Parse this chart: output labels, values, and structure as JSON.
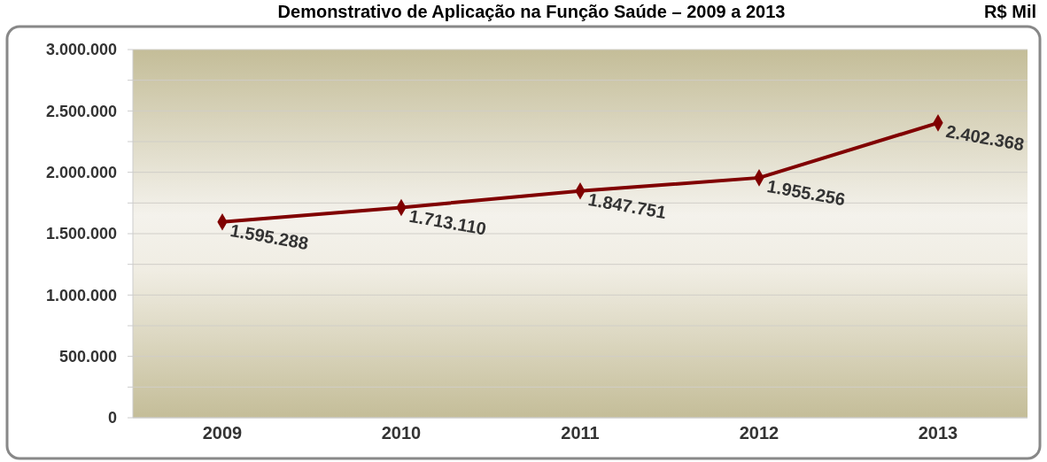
{
  "chart_data": {
    "type": "line",
    "title": "Demonstrativo de Aplicação na Função Saúde – 2009 a 2013",
    "subtitle": "R$ Mil",
    "categories": [
      "2009",
      "2010",
      "2011",
      "2012",
      "2013"
    ],
    "series": [
      {
        "color": "#800000",
        "values": [
          1595288,
          1713110,
          1847751,
          1955256,
          2402368
        ],
        "value_labels": [
          "1.595.288",
          "1.713.110",
          "1.847.751",
          "1.955.256",
          "2.402.368"
        ]
      }
    ],
    "ylim": [
      0,
      3000000
    ],
    "yticks": [
      0,
      {
        "value": 250000,
        "label": null
      },
      {
        "value": 500000,
        "label": "500.000"
      },
      {
        "value": 750000,
        "label": null
      },
      {
        "value": 1000000,
        "label": "1.000.000"
      },
      {
        "value": 1250000,
        "label": null
      },
      {
        "value": 1500000,
        "label": "1.500.000"
      },
      {
        "value": 1750000,
        "label": null
      },
      {
        "value": 2000000,
        "label": "2.000.000"
      },
      {
        "value": 2250000,
        "label": null
      },
      {
        "value": 2500000,
        "label": "2.500.000"
      },
      {
        "value": 2750000,
        "label": null
      },
      {
        "value": 3000000,
        "label": "3.000.000"
      }
    ],
    "grid": true,
    "marker": "diamond"
  }
}
